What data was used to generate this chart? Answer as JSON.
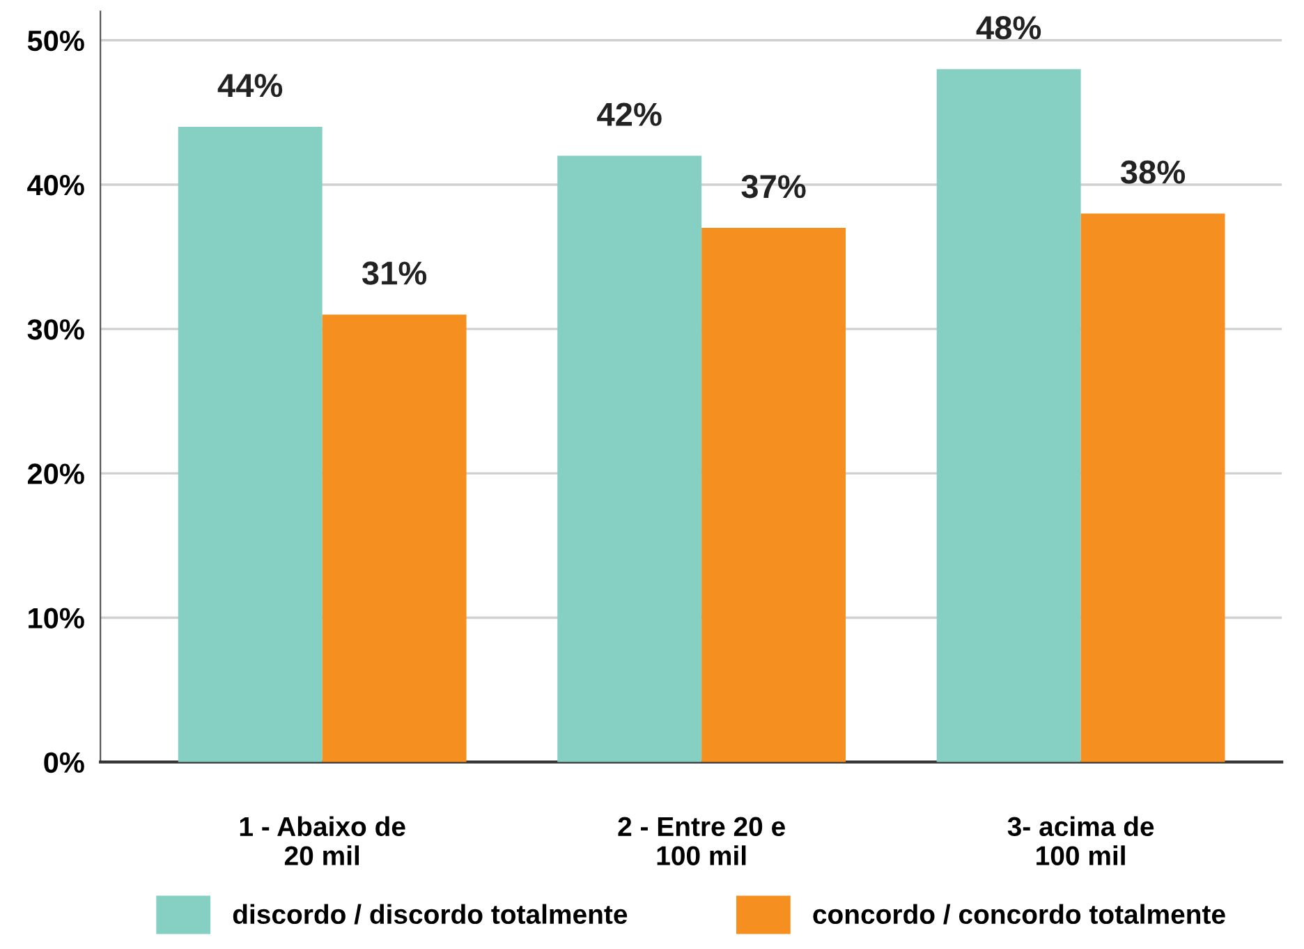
{
  "chart_data": {
    "type": "bar",
    "categories": [
      "1 - Abaixo de\n20 mil",
      "2 - Entre 20 e\n100 mil",
      "3- acima de\n100 mil"
    ],
    "series": [
      {
        "name": "discordo / discordo totalmente",
        "color": "#86cfc3",
        "values": [
          44,
          42,
          48
        ],
        "value_labels": [
          "44%",
          "42%",
          "48%"
        ]
      },
      {
        "name": "concordo / concordo totalmente",
        "color": "#f58f1f",
        "values": [
          31,
          37,
          38
        ],
        "value_labels": [
          "31%",
          "37%",
          "38%"
        ]
      }
    ],
    "ylim": [
      0,
      52
    ],
    "yticks": [
      {
        "value": 0,
        "label": "0%"
      },
      {
        "value": 10,
        "label": "10%"
      },
      {
        "value": 20,
        "label": "20%"
      },
      {
        "value": 30,
        "label": "30%"
      },
      {
        "value": 40,
        "label": "40%"
      },
      {
        "value": 50,
        "label": "50%"
      }
    ],
    "grid": "y",
    "legend": "bottom"
  }
}
